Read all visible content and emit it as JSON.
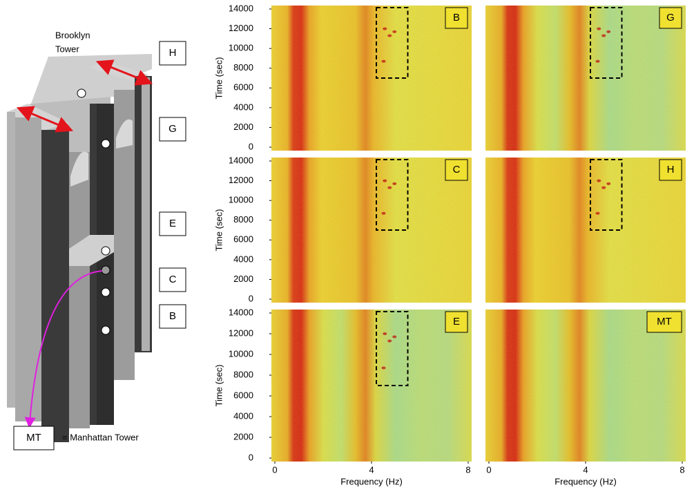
{
  "diagram": {
    "title_lines": [
      "Brooklyn",
      "Tower"
    ],
    "labels": [
      "H",
      "G",
      "E",
      "C",
      "B"
    ],
    "legend": {
      "box": "MT",
      "text": "= Manhattan Tower"
    }
  },
  "spectrograms": {
    "y_label": "Time (sec)",
    "x_label": "Frequency (Hz)",
    "ylim": [
      0,
      14000
    ],
    "yticks": [
      0,
      2000,
      4000,
      6000,
      8000,
      10000,
      12000,
      14000
    ],
    "xlim": [
      0,
      8
    ],
    "xticks": [
      0,
      4,
      8
    ],
    "panels": [
      "B",
      "G",
      "C",
      "H",
      "E",
      "MT"
    ]
  }
}
